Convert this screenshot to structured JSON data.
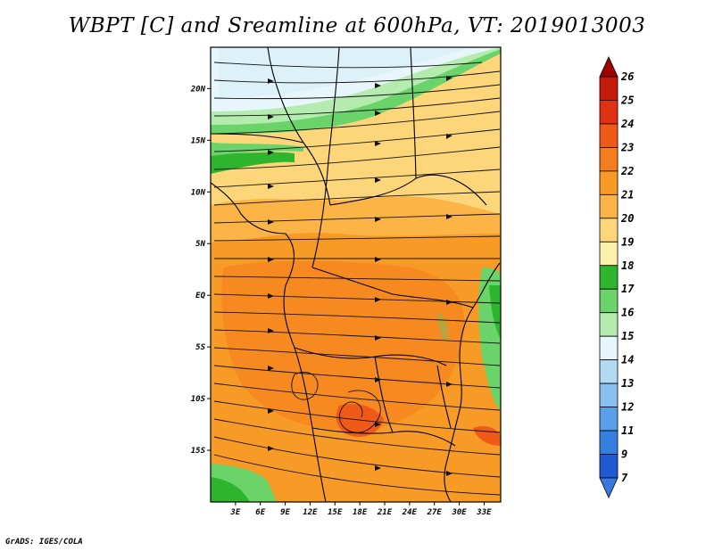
{
  "title": "WBPT [C] and Sreamline at 600hPa, VT: 2019013003",
  "credit": "GrADS: IGES/COLA",
  "map": {
    "lon_range": [
      0,
      35
    ],
    "lat_range": [
      -20,
      24
    ],
    "lon_ticks": [
      {
        "value": 3,
        "label": "3E"
      },
      {
        "value": 6,
        "label": "6E"
      },
      {
        "value": 9,
        "label": "9E"
      },
      {
        "value": 12,
        "label": "12E"
      },
      {
        "value": 15,
        "label": "15E"
      },
      {
        "value": 18,
        "label": "18E"
      },
      {
        "value": 21,
        "label": "21E"
      },
      {
        "value": 24,
        "label": "24E"
      },
      {
        "value": 27,
        "label": "27E"
      },
      {
        "value": 30,
        "label": "30E"
      },
      {
        "value": 33,
        "label": "33E"
      }
    ],
    "lat_ticks": [
      {
        "value": 20,
        "label": "20N"
      },
      {
        "value": 15,
        "label": "15N"
      },
      {
        "value": 10,
        "label": "10N"
      },
      {
        "value": 5,
        "label": "5N"
      },
      {
        "value": 0,
        "label": "EQ"
      },
      {
        "value": -5,
        "label": "5S"
      },
      {
        "value": -10,
        "label": "10S"
      },
      {
        "value": -15,
        "label": "15S"
      }
    ]
  },
  "colorbar": {
    "labels": [
      "26",
      "25",
      "24",
      "23",
      "22",
      "21",
      "20",
      "19",
      "18",
      "17",
      "16",
      "15",
      "14",
      "13",
      "12",
      "11",
      "9",
      "7"
    ],
    "colors": [
      "#a00000",
      "#c41a0a",
      "#e03212",
      "#f05a18",
      "#f57d1c",
      "#f79a26",
      "#fbb445",
      "#fcd679",
      "#fdf0aa",
      "#2eb52e",
      "#6ad46a",
      "#b4ecb0",
      "#e6f6fb",
      "#b4d9f3",
      "#88bfee",
      "#5aa0e8",
      "#3580de",
      "#1e5ad2",
      "#3878df"
    ]
  }
}
